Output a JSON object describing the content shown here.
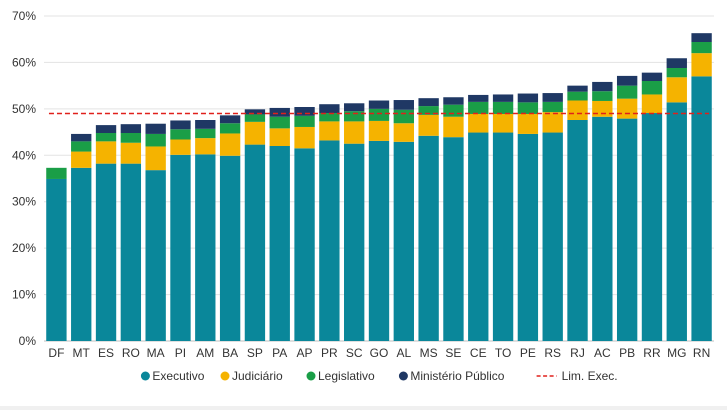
{
  "chart_data": {
    "type": "bar",
    "stacked": true,
    "categories": [
      "DF",
      "MT",
      "ES",
      "RO",
      "MA",
      "PI",
      "AM",
      "BA",
      "SP",
      "PA",
      "AP",
      "PR",
      "SC",
      "GO",
      "AL",
      "MS",
      "SE",
      "CE",
      "TO",
      "PE",
      "RS",
      "RJ",
      "AC",
      "PB",
      "RR",
      "MG",
      "RN"
    ],
    "series": [
      {
        "name": "Executivo",
        "color": "#0a879a",
        "values": [
          34.9,
          37.3,
          38.2,
          38.2,
          36.8,
          40.1,
          40.2,
          39.9,
          42.3,
          42.0,
          41.5,
          43.2,
          42.5,
          43.1,
          42.9,
          44.2,
          43.9,
          44.9,
          44.9,
          44.6,
          44.9,
          47.6,
          48.3,
          47.9,
          49.1,
          51.4,
          57.0
        ]
      },
      {
        "name": "Judiciário",
        "color": "#f5b300",
        "values": [
          0.0,
          3.5,
          4.8,
          4.5,
          5.1,
          3.3,
          3.5,
          4.8,
          4.9,
          3.8,
          4.6,
          4.1,
          4.8,
          4.3,
          4.0,
          4.5,
          4.4,
          4.0,
          4.0,
          4.3,
          4.4,
          4.2,
          3.4,
          4.3,
          4.0,
          5.4,
          5.0
        ]
      },
      {
        "name": "Legislativo",
        "color": "#1a9e47",
        "values": [
          2.4,
          2.2,
          1.8,
          2.1,
          2.7,
          2.2,
          2.0,
          2.2,
          1.6,
          2.5,
          2.4,
          1.8,
          2.2,
          2.6,
          2.9,
          1.9,
          2.6,
          2.6,
          2.6,
          2.5,
          2.2,
          1.9,
          2.1,
          2.8,
          2.9,
          2.0,
          2.4
        ]
      },
      {
        "name": "Ministério Público",
        "color": "#1f3864",
        "values": [
          0.0,
          1.6,
          1.7,
          1.9,
          2.2,
          1.9,
          1.9,
          1.7,
          1.1,
          1.9,
          1.9,
          1.9,
          1.7,
          1.8,
          2.1,
          1.7,
          1.6,
          1.5,
          1.6,
          1.9,
          1.9,
          1.3,
          2.0,
          2.1,
          1.8,
          2.1,
          1.9
        ]
      }
    ],
    "reference_line": {
      "name": "Lim. Exec.",
      "value": 49,
      "color": "#e0201b"
    },
    "ylim": [
      0,
      70
    ],
    "yticks": [
      "0%",
      "10%",
      "20%",
      "30%",
      "40%",
      "50%",
      "60%",
      "70%"
    ],
    "ytick_values": [
      0,
      10,
      20,
      30,
      40,
      50,
      60,
      70
    ],
    "grid": true,
    "legend_position": "bottom",
    "title": "",
    "xlabel": "",
    "ylabel": ""
  }
}
